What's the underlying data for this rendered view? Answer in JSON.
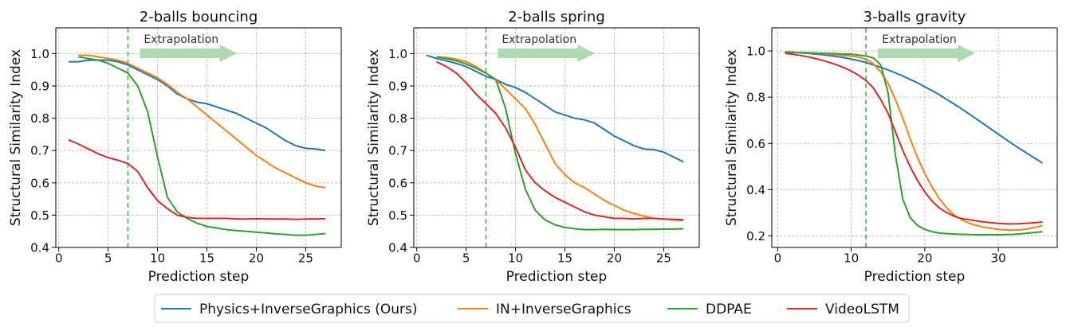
{
  "chart_data": [
    {
      "type": "line",
      "title": "2-balls bouncing",
      "xlabel": "Prediction step",
      "ylabel": "Structural Similarity Index",
      "xlim": [
        -0.3,
        28.6
      ],
      "ylim": [
        0.4,
        1.08
      ],
      "xticks": [
        0,
        5,
        10,
        15,
        20,
        25
      ],
      "yticks": [
        0.4,
        0.5,
        0.6,
        0.7,
        0.8,
        0.9,
        {
          "value": 1,
          "label": "1.0"
        }
      ],
      "grid": true,
      "vline": 7,
      "annotation": "Extrapolation",
      "x": [
        1,
        2,
        3,
        4,
        5,
        6,
        7,
        8,
        9,
        10,
        11,
        12,
        13,
        14,
        15,
        16,
        17,
        18,
        19,
        20,
        21,
        22,
        23,
        24,
        25,
        26,
        27
      ],
      "series": [
        {
          "name": "Physics+InverseGraphics (Ours)",
          "color": "#1f77b4",
          "values": [
            0.975,
            0.975,
            0.98,
            0.98,
            0.98,
            0.975,
            0.965,
            0.95,
            0.935,
            0.92,
            0.9,
            0.875,
            0.86,
            0.85,
            0.845,
            0.835,
            0.825,
            0.815,
            0.8,
            0.785,
            0.77,
            0.75,
            0.73,
            0.715,
            0.707,
            0.705,
            0.7
          ]
        },
        {
          "name": "IN+InverseGraphics",
          "color": "#ff7f0e",
          "values": [
            null,
            0.995,
            0.995,
            0.99,
            0.985,
            0.98,
            0.97,
            0.955,
            0.94,
            0.925,
            0.905,
            0.88,
            0.86,
            0.835,
            0.81,
            0.785,
            0.76,
            0.735,
            0.71,
            0.685,
            0.665,
            0.645,
            0.63,
            0.615,
            0.6,
            0.59,
            0.585
          ]
        },
        {
          "name": "DDPAE",
          "color": "#2ca02c",
          "values": [
            null,
            0.99,
            0.985,
            0.98,
            0.97,
            0.955,
            0.94,
            0.9,
            0.82,
            0.68,
            0.555,
            0.51,
            0.49,
            0.475,
            0.465,
            0.46,
            0.455,
            0.452,
            0.45,
            0.447,
            0.445,
            0.442,
            0.44,
            0.438,
            0.438,
            0.44,
            0.443
          ]
        },
        {
          "name": "VideoLSTM",
          "color": "#d62728",
          "values": [
            0.733,
            0.72,
            0.705,
            0.69,
            0.678,
            0.67,
            0.66,
            0.635,
            0.585,
            0.545,
            0.52,
            0.5,
            0.493,
            0.49,
            0.49,
            0.49,
            0.49,
            0.488,
            0.488,
            0.489,
            0.488,
            0.488,
            0.488,
            0.487,
            0.488,
            0.488,
            0.489
          ]
        }
      ]
    },
    {
      "type": "line",
      "title": "2-balls spring",
      "xlabel": "Prediction step",
      "ylabel": "Structural Similarity Index",
      "xlim": [
        -0.3,
        28.6
      ],
      "ylim": [
        0.4,
        1.08
      ],
      "xticks": [
        0,
        5,
        10,
        15,
        20,
        25
      ],
      "yticks": [
        0.4,
        0.5,
        0.6,
        0.7,
        0.8,
        0.9,
        {
          "value": 1,
          "label": "1.0"
        }
      ],
      "grid": true,
      "vline": 7,
      "annotation": "Extrapolation",
      "x": [
        1,
        2,
        3,
        4,
        5,
        6,
        7,
        8,
        9,
        10,
        11,
        12,
        13,
        14,
        15,
        16,
        17,
        18,
        19,
        20,
        21,
        22,
        23,
        24,
        25,
        26,
        27
      ],
      "series": [
        {
          "name": "Physics+InverseGraphics (Ours)",
          "color": "#1f77b4",
          "values": [
            0.995,
            0.985,
            0.978,
            0.97,
            0.96,
            0.945,
            0.93,
            0.92,
            0.905,
            0.895,
            0.88,
            0.86,
            0.84,
            0.82,
            0.81,
            0.8,
            0.795,
            0.785,
            0.765,
            0.745,
            0.73,
            0.715,
            0.705,
            0.703,
            0.695,
            0.68,
            0.665
          ]
        },
        {
          "name": "IN+InverseGraphics",
          "color": "#ff7f0e",
          "values": [
            null,
            0.99,
            0.988,
            0.983,
            0.975,
            0.96,
            0.94,
            0.92,
            0.89,
            0.86,
            0.83,
            0.78,
            0.72,
            0.66,
            0.625,
            0.6,
            0.585,
            0.565,
            0.545,
            0.53,
            0.515,
            0.505,
            0.497,
            0.49,
            0.488,
            0.485,
            0.483
          ]
        },
        {
          "name": "DDPAE",
          "color": "#2ca02c",
          "values": [
            null,
            0.99,
            0.985,
            0.978,
            0.968,
            0.955,
            0.94,
            0.92,
            0.83,
            0.69,
            0.58,
            0.515,
            0.485,
            0.47,
            0.462,
            0.458,
            0.455,
            0.455,
            0.456,
            0.455,
            0.455,
            0.455,
            0.456,
            0.456,
            0.457,
            0.457,
            0.458
          ]
        },
        {
          "name": "VideoLSTM",
          "color": "#d62728",
          "values": [
            null,
            0.975,
            0.96,
            0.94,
            0.91,
            0.875,
            0.845,
            0.815,
            0.77,
            0.71,
            0.64,
            0.6,
            0.575,
            0.555,
            0.54,
            0.525,
            0.51,
            0.5,
            0.495,
            0.49,
            0.49,
            0.488,
            0.49,
            0.49,
            0.488,
            0.487,
            0.486
          ]
        }
      ]
    },
    {
      "type": "line",
      "title": "3-balls gravity",
      "xlabel": "Prediction step",
      "ylabel": "Structural Similarity Index",
      "xlim": [
        -0.8,
        38
      ],
      "ylim": [
        0.15,
        1.1
      ],
      "xticks": [
        0,
        10,
        20,
        30
      ],
      "yticks": [
        0.2,
        0.4,
        0.6,
        0.8,
        {
          "value": 1,
          "label": "1.0"
        }
      ],
      "grid": true,
      "vline": 12,
      "annotation": "Extrapolation",
      "x": [
        1,
        2,
        3,
        4,
        5,
        6,
        7,
        8,
        9,
        10,
        11,
        12,
        13,
        14,
        15,
        16,
        17,
        18,
        19,
        20,
        21,
        22,
        23,
        24,
        25,
        26,
        27,
        28,
        29,
        30,
        31,
        32,
        33,
        34,
        35,
        36
      ],
      "series": [
        {
          "name": "Physics+InverseGraphics (Ours)",
          "color": "#1f77b4",
          "values": [
            0.995,
            0.994,
            0.992,
            0.99,
            0.987,
            0.984,
            0.98,
            0.976,
            0.971,
            0.965,
            0.958,
            0.95,
            0.94,
            0.93,
            0.918,
            0.905,
            0.892,
            0.877,
            0.862,
            0.845,
            0.828,
            0.81,
            0.79,
            0.77,
            0.75,
            0.728,
            0.706,
            0.684,
            0.662,
            0.64,
            0.618,
            0.596,
            0.575,
            0.555,
            0.535,
            0.515
          ]
        },
        {
          "name": "IN+InverseGraphics",
          "color": "#ff7f0e",
          "values": [
            0.995,
            0.994,
            0.993,
            0.992,
            0.99,
            0.988,
            0.986,
            0.984,
            0.981,
            0.978,
            0.973,
            0.965,
            0.945,
            0.91,
            0.86,
            0.79,
            0.71,
            0.62,
            0.54,
            0.47,
            0.41,
            0.36,
            0.32,
            0.29,
            0.27,
            0.255,
            0.245,
            0.238,
            0.233,
            0.228,
            0.226,
            0.225,
            0.226,
            0.23,
            0.237,
            0.245
          ]
        },
        {
          "name": "DDPAE",
          "color": "#2ca02c",
          "values": [
            0.995,
            0.994,
            0.993,
            0.992,
            0.991,
            0.99,
            0.989,
            0.988,
            0.987,
            0.986,
            0.982,
            0.978,
            0.97,
            0.94,
            0.82,
            0.55,
            0.36,
            0.28,
            0.245,
            0.228,
            0.218,
            0.212,
            0.21,
            0.208,
            0.207,
            0.206,
            0.205,
            0.205,
            0.205,
            0.205,
            0.206,
            0.207,
            0.209,
            0.212,
            0.215,
            0.218
          ]
        },
        {
          "name": "VideoLSTM",
          "color": "#d62728",
          "values": [
            0.99,
            0.986,
            0.981,
            0.975,
            0.968,
            0.96,
            0.951,
            0.94,
            0.928,
            0.913,
            0.895,
            0.872,
            0.84,
            0.79,
            0.73,
            0.65,
            0.57,
            0.5,
            0.44,
            0.39,
            0.35,
            0.32,
            0.3,
            0.285,
            0.275,
            0.27,
            0.265,
            0.26,
            0.257,
            0.254,
            0.252,
            0.252,
            0.253,
            0.255,
            0.257,
            0.26
          ]
        }
      ]
    }
  ]
}
